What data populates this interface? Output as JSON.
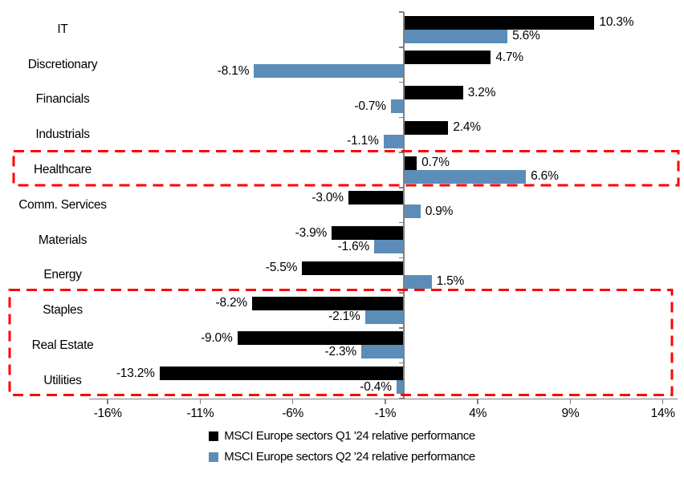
{
  "chart_data": {
    "type": "bar",
    "orientation": "horizontal",
    "title": "",
    "categories": [
      "IT",
      "Discretionary",
      "Financials",
      "Industrials",
      "Healthcare",
      "Comm. Services",
      "Materials",
      "Energy",
      "Staples",
      "Real Estate",
      "Utilities"
    ],
    "series": [
      {
        "name": "MSCI Europe sectors Q1 '24 relative performance",
        "color": "#000000",
        "values": [
          10.3,
          4.7,
          3.2,
          2.4,
          0.7,
          -3.0,
          -3.9,
          -5.5,
          -8.2,
          -9.0,
          -13.2
        ],
        "labels": [
          "10.3%",
          "4.7%",
          "3.2%",
          "2.4%",
          "0.7%",
          "-3.0%",
          "-3.9%",
          "-5.5%",
          "-8.2%",
          "-9.0%",
          "-13.2%"
        ]
      },
      {
        "name": "MSCI Europe sectors Q2 '24 relative performance",
        "color": "#5B8DB8",
        "values": [
          5.6,
          -8.1,
          -0.7,
          -1.1,
          6.6,
          0.9,
          -1.6,
          1.5,
          -2.1,
          -2.3,
          -0.4
        ],
        "labels": [
          "5.6%",
          "-8.1%",
          "-0.7%",
          "-1.1%",
          "6.6%",
          "0.9%",
          "-1.6%",
          "1.5%",
          "-2.1%",
          "-2.3%",
          "-0.4%"
        ]
      }
    ],
    "x_axis": {
      "unit": "%",
      "tick_values": [
        -16,
        -11,
        -6,
        -1,
        4,
        9,
        14
      ],
      "tick_labels": [
        "-16%",
        "-11%",
        "-6%",
        "-1%",
        "4%",
        "9%",
        "14%"
      ],
      "range": [
        -17,
        14.8
      ]
    },
    "grid": false,
    "legend_position": "bottom",
    "highlight_boxes": [
      {
        "color": "#FF0000",
        "style": "dashed",
        "from_category": "Healthcare",
        "to_category": "Healthcare"
      },
      {
        "color": "#FF0000",
        "style": "dashed",
        "from_category": "Staples",
        "to_category": "Utilities"
      }
    ],
    "axis_color": "#808080"
  }
}
